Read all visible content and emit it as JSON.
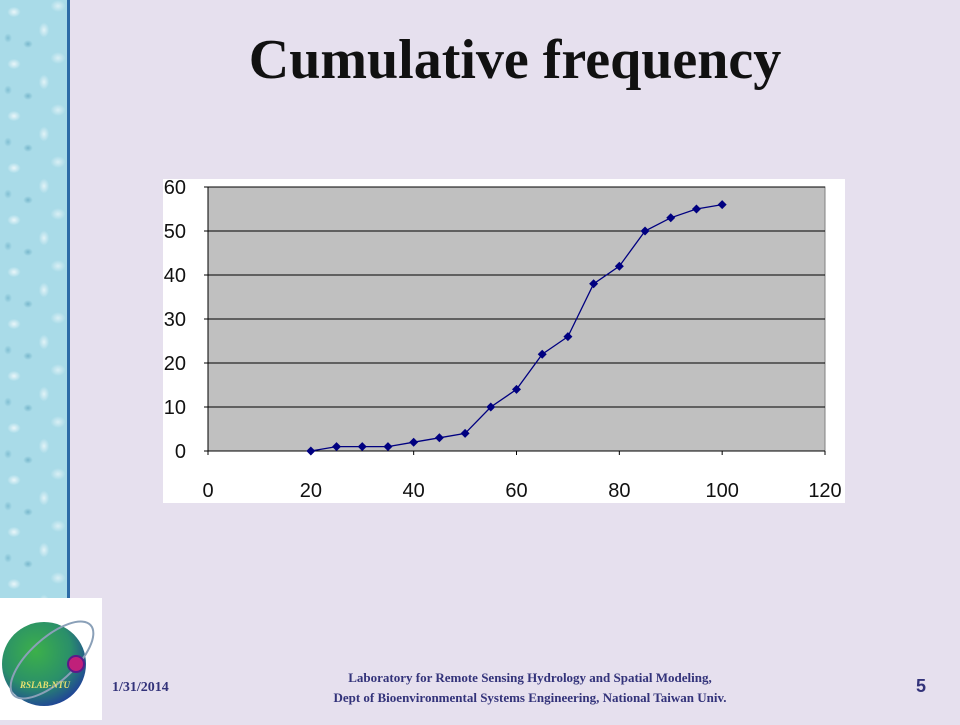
{
  "slide": {
    "title": "Cumulative frequency",
    "footer_date": "1/31/2014",
    "footer_lab_line1": "Laboratory for Remote Sensing Hydrology and Spatial Modeling,",
    "footer_lab_line2": "Dept of Bioenvironmental Systems Engineering,  National Taiwan Univ.",
    "page_number": "5",
    "logo_text": "RSLAB-NTU"
  },
  "colors": {
    "series": "#000080",
    "plot_area": "#c0c0c0",
    "background": "#e6e0ee"
  },
  "chart_data": {
    "type": "line",
    "title": "",
    "xlabel": "",
    "ylabel": "",
    "xlim": [
      0,
      120
    ],
    "ylim": [
      0,
      60
    ],
    "xticks": [
      0,
      20,
      40,
      60,
      80,
      100,
      120
    ],
    "yticks": [
      0,
      10,
      20,
      30,
      40,
      50,
      60
    ],
    "grid": "horizontal",
    "legend": "none",
    "marker": "diamond",
    "series": [
      {
        "x": [
          20,
          25,
          30,
          35,
          40,
          45,
          50,
          55,
          60,
          65,
          70,
          75,
          80,
          85,
          90,
          95,
          100
        ],
        "values": [
          0,
          1,
          1,
          1,
          2,
          3,
          4,
          10,
          14,
          22,
          26,
          38,
          42,
          50,
          53,
          55,
          56
        ]
      }
    ]
  }
}
